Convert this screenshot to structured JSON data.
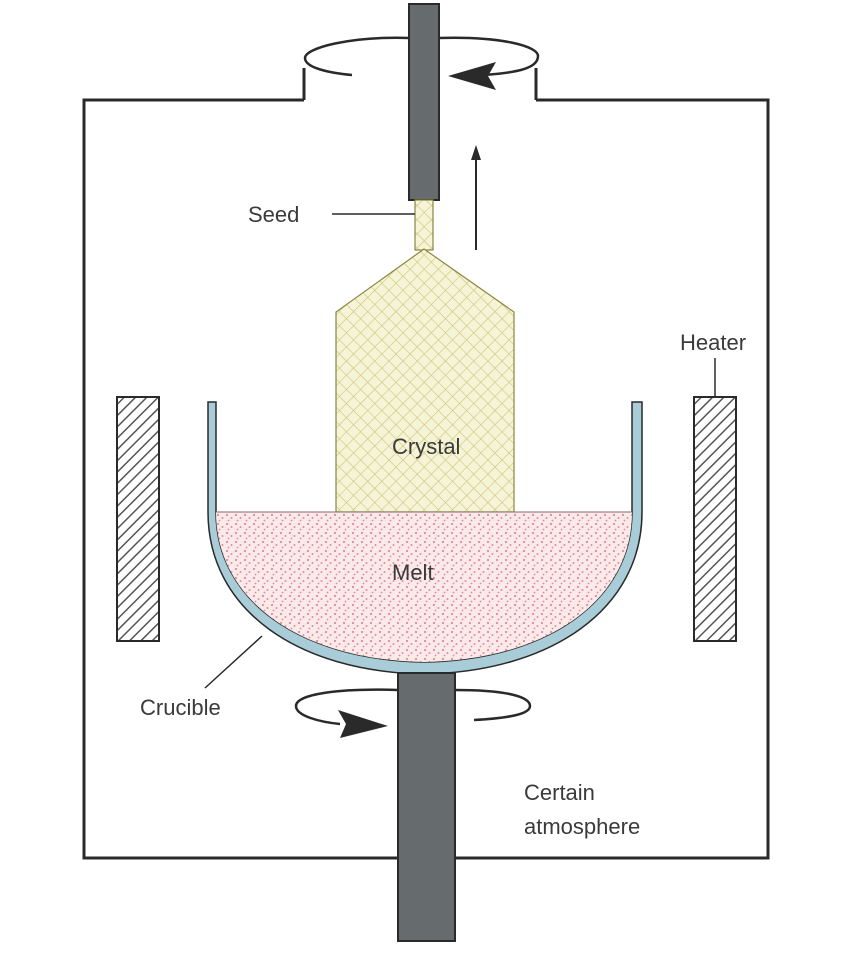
{
  "labels": {
    "seed": "Seed",
    "heater": "Heater",
    "crystal": "Crystal",
    "melt": "Melt",
    "crucible": "Crucible",
    "atmosphere_line1": "Certain",
    "atmosphere_line2": "atmosphere"
  },
  "colors": {
    "rod": "#666b6e",
    "chamber_stroke": "#2a2a2a",
    "crystal_fill": "#f6f4d6",
    "crystal_hatch": "#c9c57a",
    "melt_fill": "#f9e3e3",
    "melt_dot": "#e58a95",
    "crucible": "#a9cdd8",
    "heater_hatch": "#555555",
    "text": "#3a3a3a"
  },
  "icons": [
    "rotation-arrow-icon",
    "pull-up-arrow-icon"
  ]
}
